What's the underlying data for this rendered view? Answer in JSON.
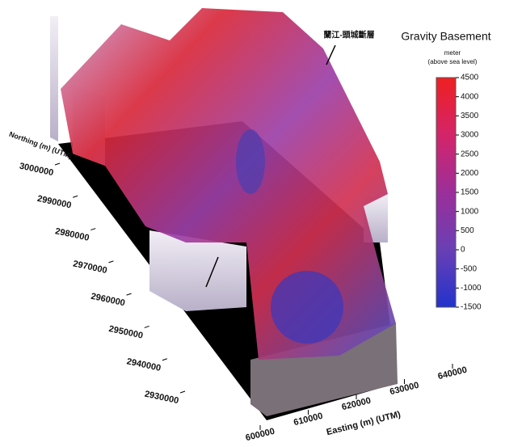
{
  "chart_data": {
    "type": "surface3d",
    "title": "Gravity Basement",
    "annotation": "蘭江-頭城斷層",
    "x_label": "Easting (m) (UTM)",
    "y_label": "Northing (m) (UTM)",
    "xlim": [
      600000,
      640000
    ],
    "xticks": [
      600000,
      610000,
      620000,
      630000,
      640000
    ],
    "ylim": [
      2930000,
      3000000
    ],
    "yticks": [
      2930000,
      2940000,
      2950000,
      2960000,
      2970000,
      2980000,
      2990000,
      3000000
    ],
    "colorbar": {
      "label": "meter",
      "sublabel": "(above sea level)",
      "lim": [
        -1500,
        4500
      ],
      "ticks": [
        -1500,
        -1000,
        -500,
        0,
        500,
        1000,
        1500,
        2000,
        2500,
        3000,
        3500,
        4000,
        4500
      ],
      "colors": [
        "#2233cc",
        "#6a3fb5",
        "#9b2f9a",
        "#d4246a",
        "#ee2020"
      ]
    }
  }
}
